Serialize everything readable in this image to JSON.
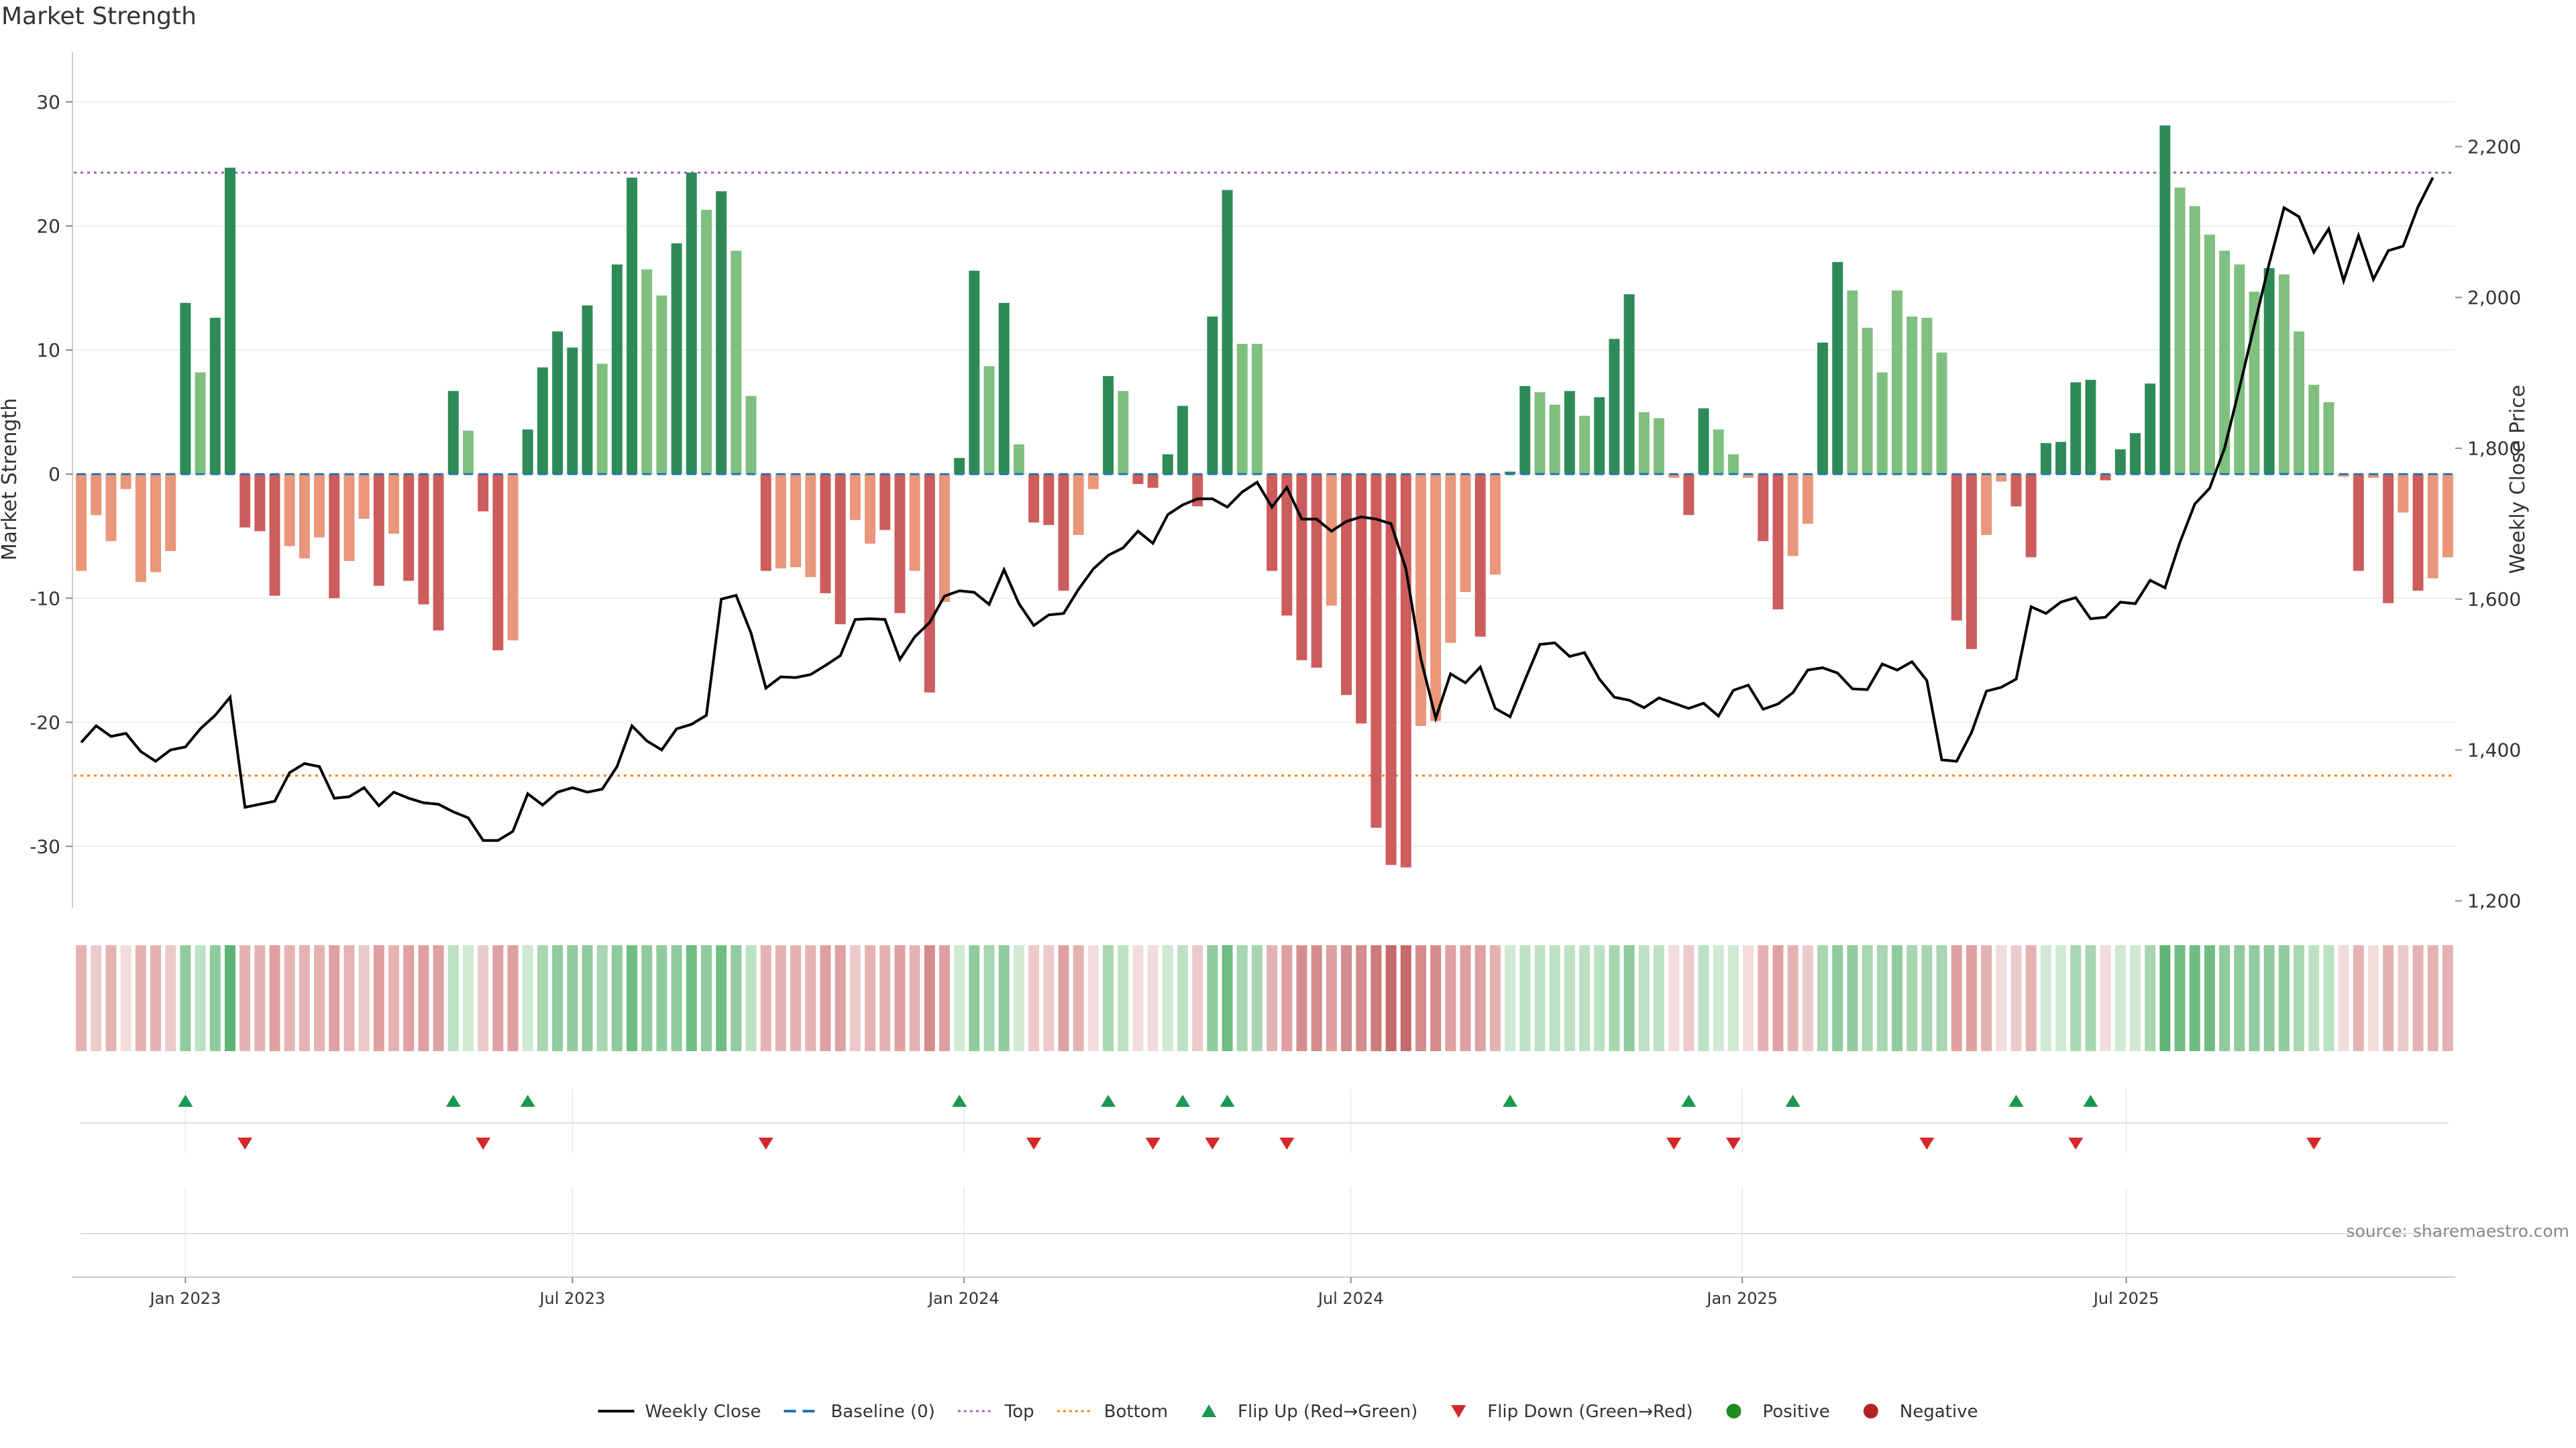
{
  "title": "Market Strength",
  "source_note": "source: sharemaestro.com",
  "colors": {
    "strong_pos": "#2e8b57",
    "weak_pos": "#7fbf7f",
    "strong_neg": "#cd5c5c",
    "weak_neg": "#e9967a",
    "line": "#000000",
    "baseline": "#1f77b4",
    "top": "#9467bd",
    "bottom": "#ff7f0e",
    "flip_up": "#1a9850",
    "flip_down": "#d62728",
    "positive": "#228b22",
    "negative": "#b22222"
  },
  "chart_data": {
    "type": "bar",
    "title": "Market Strength",
    "ylabel": "Market Strength",
    "y2label": "Weekly Close Price",
    "ylim": [
      -35,
      34
    ],
    "y2lim": [
      1190,
      2325
    ],
    "yticks": [
      30,
      20,
      10,
      0,
      -10,
      -20,
      -30
    ],
    "y2ticks": [
      2200,
      2000,
      1800,
      1600,
      1400,
      1200
    ],
    "y2ticklabels": [
      "2,200",
      "2,000",
      "1,800",
      "1,600",
      "1,400",
      "1,200"
    ],
    "xticks": [
      {
        "label": "Jan 2023",
        "index": 7
      },
      {
        "label": "Jul 2023",
        "index": 33
      },
      {
        "label": "Jan 2024",
        "index": 59.3
      },
      {
        "label": "Jul 2024",
        "index": 85.3
      },
      {
        "label": "Jan 2025",
        "index": 111.6
      },
      {
        "label": "Jul 2025",
        "index": 137.4
      }
    ],
    "top_line": 24.3,
    "bottom_line": -24.3,
    "strength": [
      -7.8,
      -3.3,
      -5.4,
      -1.2,
      -8.7,
      -7.9,
      -6.2,
      13.8,
      8.2,
      12.6,
      24.7,
      -4.3,
      -4.6,
      -9.8,
      -5.8,
      -6.8,
      -5.1,
      -10,
      -7,
      -3.6,
      -9,
      -4.8,
      -8.6,
      -10.5,
      -12.6,
      6.7,
      3.5,
      -3,
      -14.2,
      -13.4,
      3.6,
      8.6,
      11.5,
      10.2,
      13.6,
      8.9,
      16.9,
      23.9,
      16.5,
      14.4,
      18.6,
      24.3,
      21.3,
      22.8,
      18,
      6.3,
      -7.8,
      -7.6,
      -7.5,
      -8.3,
      -9.6,
      -12.1,
      -3.7,
      -5.6,
      -4.5,
      -11.2,
      -7.8,
      -17.6,
      -10.3,
      1.3,
      16.4,
      8.7,
      13.8,
      2.4,
      -3.9,
      -4.1,
      -9.4,
      -4.9,
      -1.2,
      7.9,
      6.7,
      -0.8,
      -1.1,
      1.6,
      5.5,
      -2.6,
      12.7,
      22.9,
      10.5,
      10.5,
      -7.8,
      -11.4,
      -15,
      -15.6,
      -10.6,
      -17.8,
      -20.1,
      -28.5,
      -31.5,
      -31.7,
      -20.3,
      -19.9,
      -13.6,
      -9.5,
      -13.1,
      -8.1,
      0.2,
      7.1,
      6.6,
      5.6,
      6.7,
      4.7,
      6.2,
      10.9,
      14.5,
      5,
      4.5,
      -0.3,
      -3.3,
      5.3,
      3.6,
      1.6,
      -0.3,
      -5.4,
      -10.9,
      -6.6,
      -4,
      10.6,
      17.1,
      14.8,
      11.8,
      8.2,
      14.8,
      12.7,
      12.6,
      9.8,
      -11.8,
      -14.1,
      -4.9,
      -0.6,
      -2.6,
      -6.7,
      2.5,
      2.6,
      7.4,
      7.6,
      -0.5,
      2,
      3.3,
      7.3,
      28.1,
      23.1,
      21.6,
      19.3,
      18,
      16.9,
      14.7,
      16.6,
      16.1,
      11.5,
      7.2,
      5.8,
      -0.2,
      -7.8,
      -0.3,
      -10.4,
      -3.1,
      -9.4,
      -8.4,
      -6.7
    ],
    "strength_strong": [
      0,
      0,
      0,
      0,
      0,
      0,
      0,
      1,
      0,
      1,
      1,
      1,
      1,
      1,
      0,
      0,
      0,
      1,
      0,
      0,
      1,
      0,
      1,
      1,
      1,
      1,
      0,
      1,
      1,
      0,
      1,
      1,
      1,
      1,
      1,
      0,
      1,
      1,
      0,
      0,
      1,
      1,
      0,
      1,
      0,
      0,
      1,
      0,
      0,
      0,
      1,
      1,
      0,
      0,
      1,
      1,
      0,
      1,
      0,
      1,
      1,
      0,
      1,
      0,
      1,
      1,
      1,
      0,
      0,
      1,
      0,
      1,
      1,
      1,
      1,
      1,
      1,
      1,
      0,
      0,
      1,
      1,
      1,
      1,
      0,
      1,
      1,
      1,
      1,
      1,
      0,
      0,
      0,
      0,
      1,
      0,
      1,
      1,
      0,
      0,
      1,
      0,
      1,
      1,
      1,
      0,
      0,
      0,
      1,
      1,
      0,
      0,
      0,
      1,
      1,
      0,
      0,
      1,
      1,
      0,
      0,
      0,
      0,
      0,
      0,
      0,
      1,
      1,
      0,
      0,
      1,
      1,
      1,
      1,
      1,
      1,
      1,
      1,
      1,
      1,
      1,
      0,
      0,
      0,
      0,
      0,
      0,
      1,
      0,
      0,
      0,
      0,
      0,
      1,
      0,
      1,
      0,
      1,
      0,
      0
    ],
    "price": [
      1410,
      1432,
      1418,
      1422,
      1398,
      1385,
      1400,
      1404,
      1428,
      1446,
      1470,
      1324,
      1328,
      1332,
      1370,
      1382,
      1378,
      1336,
      1338,
      1350,
      1326,
      1344,
      1336,
      1330,
      1328,
      1318,
      1310,
      1280,
      1280,
      1292,
      1342,
      1327,
      1344,
      1350,
      1344,
      1348,
      1378,
      1432,
      1412,
      1400,
      1428,
      1434,
      1446,
      1600,
      1605,
      1555,
      1482,
      1497,
      1496,
      1500,
      1512,
      1525,
      1573,
      1574,
      1573,
      1520,
      1550,
      1569,
      1604,
      1611,
      1609,
      1593,
      1639,
      1594,
      1565,
      1579,
      1581,
      1613,
      1640,
      1658,
      1668,
      1690,
      1674,
      1712,
      1725,
      1733,
      1733,
      1722,
      1742,
      1755,
      1722,
      1748,
      1706,
      1706,
      1690,
      1703,
      1709,
      1706,
      1700,
      1640,
      1521,
      1442,
      1501,
      1489,
      1510,
      1455,
      1444,
      1493,
      1540,
      1542,
      1524,
      1529,
      1494,
      1470,
      1466,
      1456,
      1469,
      1462,
      1455,
      1462,
      1445,
      1479,
      1486,
      1454,
      1461,
      1476,
      1506,
      1509,
      1502,
      1481,
      1480,
      1514,
      1506,
      1517,
      1492,
      1387,
      1385,
      1423,
      1478,
      1483,
      1494,
      1590,
      1581,
      1596,
      1602,
      1574,
      1576,
      1596,
      1594,
      1625,
      1615,
      1675,
      1726,
      1747,
      1800,
      1880,
      1963,
      2045,
      2119,
      2107,
      2060,
      2091,
      2022,
      2082,
      2024,
      2062,
      2068,
      2120,
      2159
    ]
  },
  "heatmap": {
    "label": "Strength heat strip",
    "colors": [
      "#e5b2b2",
      "#eccaca",
      "#e5b2b2",
      "#f2dcdc",
      "#e5b2b2",
      "#e5b2b2",
      "#eccaca",
      "#8fcb9c",
      "#bde1c3",
      "#8fcb9c",
      "#5fb374",
      "#e5b2b2",
      "#e5b2b2",
      "#dea0a0",
      "#e5b2b2",
      "#e5b2b2",
      "#e5b2b2",
      "#dea0a0",
      "#e5b2b2",
      "#eccaca",
      "#dea0a0",
      "#e5b2b2",
      "#dea0a0",
      "#dea0a0",
      "#dea0a0",
      "#bde1c3",
      "#cfe9d3",
      "#eccaca",
      "#dea0a0",
      "#dea0a0",
      "#cfe9d3",
      "#a7d6b0",
      "#8fcb9c",
      "#8fcb9c",
      "#8fcb9c",
      "#a7d6b0",
      "#8fcb9c",
      "#6fbd82",
      "#8fcb9c",
      "#8fcb9c",
      "#8fcb9c",
      "#6fbd82",
      "#8fcb9c",
      "#6fbd82",
      "#8fcb9c",
      "#bde1c3",
      "#e5b2b2",
      "#e5b2b2",
      "#e5b2b2",
      "#e5b2b2",
      "#dea0a0",
      "#dea0a0",
      "#eccaca",
      "#e5b2b2",
      "#e5b2b2",
      "#dea0a0",
      "#e5b2b2",
      "#d58c8c",
      "#dea0a0",
      "#cfe9d3",
      "#8fcb9c",
      "#a7d6b0",
      "#8fcb9c",
      "#cfe9d3",
      "#eccaca",
      "#eccaca",
      "#dea0a0",
      "#e5b2b2",
      "#f2dcdc",
      "#a7d6b0",
      "#bde1c3",
      "#f2dcdc",
      "#f2dcdc",
      "#cfe9d3",
      "#bde1c3",
      "#eccaca",
      "#8fcb9c",
      "#6fbd82",
      "#a7d6b0",
      "#a7d6b0",
      "#e5b2b2",
      "#dea0a0",
      "#d58c8c",
      "#d58c8c",
      "#dea0a0",
      "#d58c8c",
      "#d58c8c",
      "#cc7a7a",
      "#c56a6a",
      "#c56a6a",
      "#d58c8c",
      "#d58c8c",
      "#dea0a0",
      "#dea0a0",
      "#dea0a0",
      "#e5b2b2",
      "#cfe9d3",
      "#bde1c3",
      "#bde1c3",
      "#bde1c3",
      "#bde1c3",
      "#bde1c3",
      "#bde1c3",
      "#a7d6b0",
      "#8fcb9c",
      "#bde1c3",
      "#bde1c3",
      "#f2dcdc",
      "#eccaca",
      "#bde1c3",
      "#cfe9d3",
      "#cfe9d3",
      "#f2dcdc",
      "#e5b2b2",
      "#dea0a0",
      "#e5b2b2",
      "#eccaca",
      "#a7d6b0",
      "#8fcb9c",
      "#8fcb9c",
      "#a7d6b0",
      "#a7d6b0",
      "#8fcb9c",
      "#a7d6b0",
      "#a7d6b0",
      "#a7d6b0",
      "#dea0a0",
      "#dea0a0",
      "#e5b2b2",
      "#f2dcdc",
      "#eccaca",
      "#e5b2b2",
      "#cfe9d3",
      "#cfe9d3",
      "#a7d6b0",
      "#a7d6b0",
      "#f2dcdc",
      "#cfe9d3",
      "#cfe9d3",
      "#a7d6b0",
      "#5fb374",
      "#6fbd82",
      "#6fbd82",
      "#6fbd82",
      "#8fcb9c",
      "#8fcb9c",
      "#8fcb9c",
      "#8fcb9c",
      "#8fcb9c",
      "#a7d6b0",
      "#bde1c3",
      "#bde1c3",
      "#f2dcdc",
      "#e5b2b2",
      "#f2dcdc",
      "#e5b2b2",
      "#eccaca",
      "#e5b2b2",
      "#e5b2b2",
      "#e5b2b2"
    ]
  },
  "flips": {
    "up": [
      7,
      25,
      30,
      59,
      69,
      74,
      77,
      96,
      108,
      115,
      130,
      135
    ],
    "down": [
      11,
      27,
      46,
      64,
      72,
      76,
      81,
      107,
      111,
      124,
      134,
      150
    ]
  },
  "legend": [
    {
      "label": "Weekly Close",
      "symbol": "line"
    },
    {
      "label": "Baseline (0)",
      "symbol": "dash"
    },
    {
      "label": "Top",
      "symbol": "dot-purple"
    },
    {
      "label": "Bottom",
      "symbol": "dot-orange"
    },
    {
      "label": "Flip Up (Red→Green)",
      "symbol": "tri-up"
    },
    {
      "label": "Flip Down (Green→Red)",
      "symbol": "tri-down"
    },
    {
      "label": "Positive",
      "symbol": "circle-green"
    },
    {
      "label": "Negative",
      "symbol": "circle-red"
    }
  ]
}
